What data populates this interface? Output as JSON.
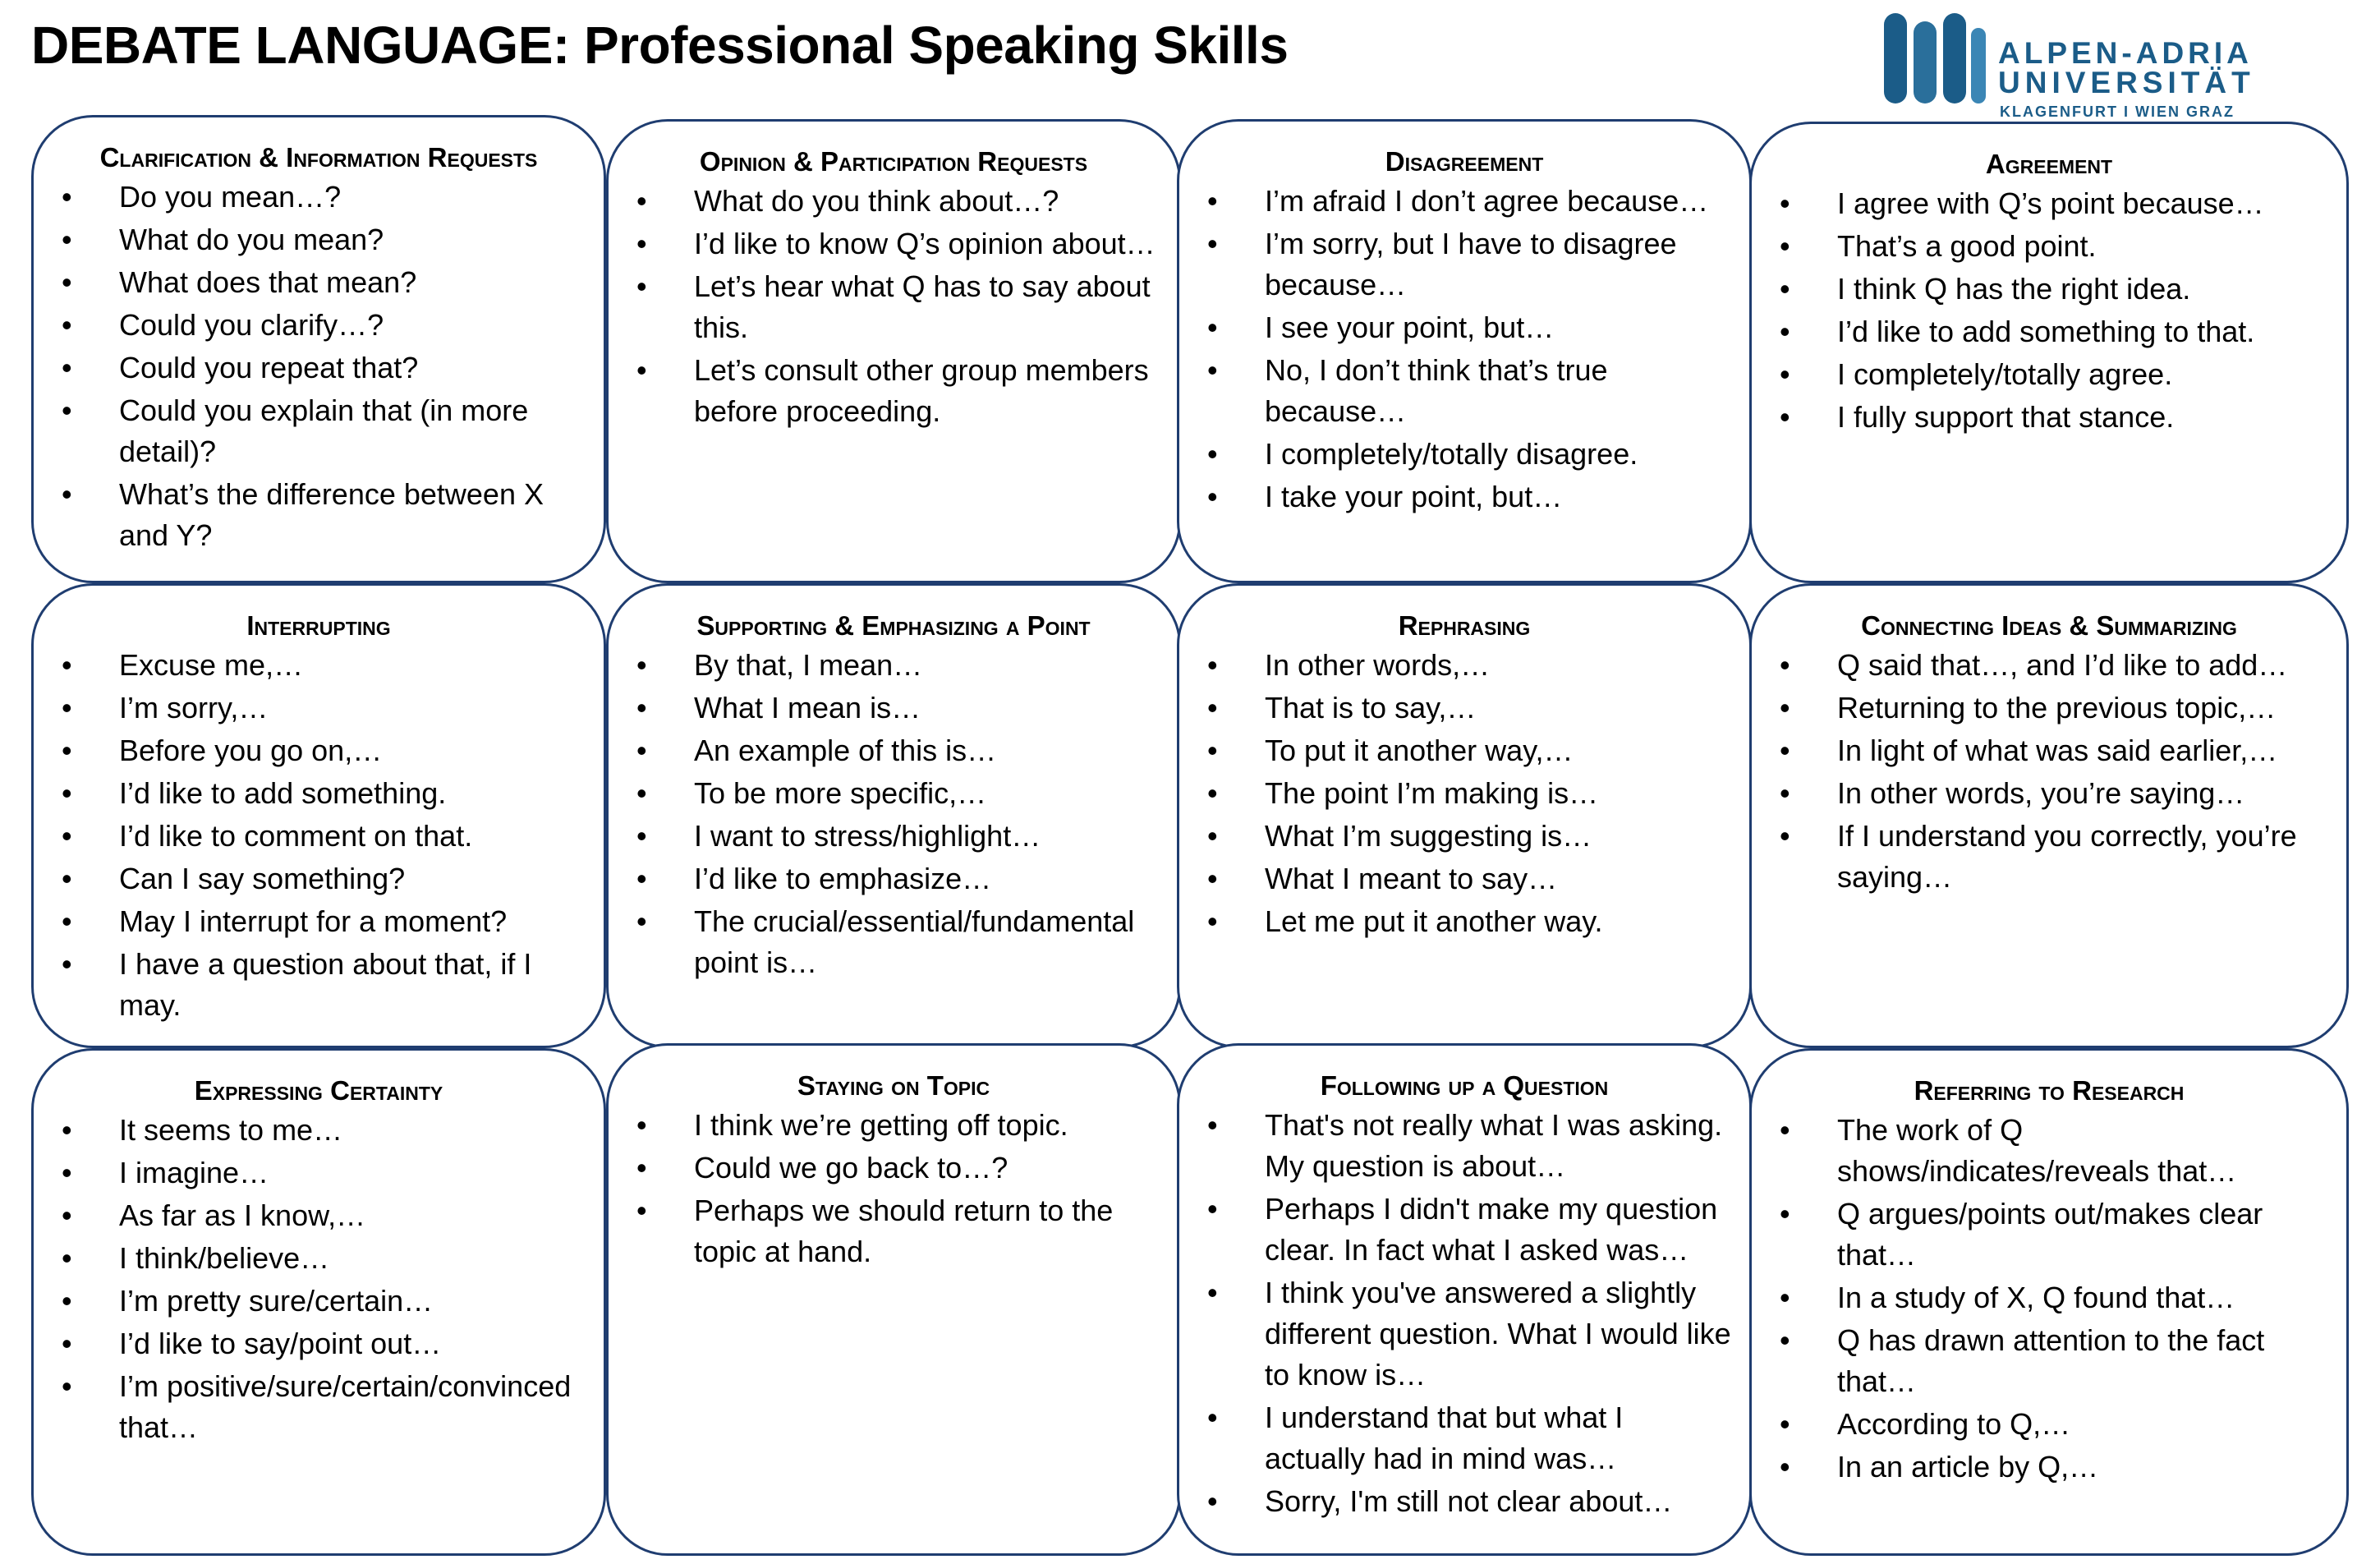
{
  "page": {
    "title": "DEBATE LANGUAGE: Professional Speaking Skills"
  },
  "logo": {
    "line1": "ALPEN-ADRIA",
    "line2": "UNIVERSITÄT",
    "sub": "KLAGENFURT I WIEN GRAZ",
    "color": "#1b5c88"
  },
  "colors": {
    "box_border": "#1f3d70"
  },
  "boxes": [
    {
      "title": "Clarification & Information Requests",
      "items": [
        "Do you mean…?",
        "What do you mean?",
        "What does that mean?",
        "Could you clarify…?",
        "Could you repeat that?",
        "Could you explain that (in more detail)?",
        "What’s the difference between X and Y?"
      ]
    },
    {
      "title": "Opinion & Participation Requests",
      "items": [
        "What do you think about…?",
        "I’d like to know Q’s opinion about…",
        "Let’s hear what Q has to say about this.",
        "Let’s consult other group members before proceeding."
      ]
    },
    {
      "title": "Disagreement",
      "items": [
        "I’m afraid I don’t agree because…",
        "I’m sorry, but I have to disagree because…",
        "I see your point, but…",
        "No, I don’t think that’s true because…",
        "I completely/totally disagree.",
        "I take your point, but…"
      ]
    },
    {
      "title": "Agreement",
      "items": [
        "I agree with Q’s point because…",
        "That’s a good point.",
        "I think Q has the right idea.",
        "I’d like to add something to that.",
        "I completely/totally agree.",
        "I fully support that stance."
      ]
    },
    {
      "title": "Interrupting",
      "items": [
        "Excuse me,…",
        "I’m sorry,…",
        "Before you go on,…",
        "I’d like to add something.",
        "I’d like to comment on that.",
        "Can I say something?",
        "May I interrupt for a moment?",
        "I have a question about that, if I may."
      ]
    },
    {
      "title": "Supporting & Emphasizing a Point",
      "items": [
        "By that, I mean…",
        "What I mean is…",
        "An example of this is…",
        "To be more specific,…",
        "I want to stress/highlight…",
        "I’d like to emphasize…",
        "The crucial/essential/fundamental point is…"
      ]
    },
    {
      "title": "Rephrasing",
      "items": [
        "In other words,…",
        "That is to say,…",
        "To put it another way,…",
        "The point I’m making is…",
        "What I’m suggesting is…",
        "What I meant to say…",
        "Let me put it another way."
      ]
    },
    {
      "title": "Connecting Ideas & Summarizing",
      "items": [
        "Q said that…, and I’d like to add…",
        "Returning to the previous topic,…",
        "In light of what was said earlier,…",
        "In other words, you’re saying…",
        "If I understand you correctly, you’re saying…"
      ]
    },
    {
      "title": "Expressing Certainty",
      "items": [
        "It seems to me…",
        "I imagine…",
        "As far as I know,…",
        "I think/believe…",
        "I’m pretty sure/certain…",
        "I’d like to say/point out…",
        "I’m positive/sure/certain/convinced that…"
      ]
    },
    {
      "title": "Staying on Topic",
      "items": [
        "I think we’re getting off topic.",
        "Could we go back to…?",
        "Perhaps we should return to the topic at hand."
      ]
    },
    {
      "title": "Following up a Question",
      "items": [
        "That's not really what I was asking. My question is about…",
        "Perhaps I didn't make my question clear. In fact what I asked was…",
        "I think you've answered a slightly different question. What I would like to know is…",
        "I understand that but what I actually had in mind was…",
        "Sorry, I'm still not clear about…"
      ]
    },
    {
      "title": "Referring to Research",
      "items": [
        "The work of Q shows/indicates/reveals that…",
        "Q argues/points out/makes clear that…",
        "In a study of X, Q found that…",
        "Q has drawn attention to the fact that…",
        "According to Q,…",
        "In an article by Q,…"
      ]
    }
  ]
}
